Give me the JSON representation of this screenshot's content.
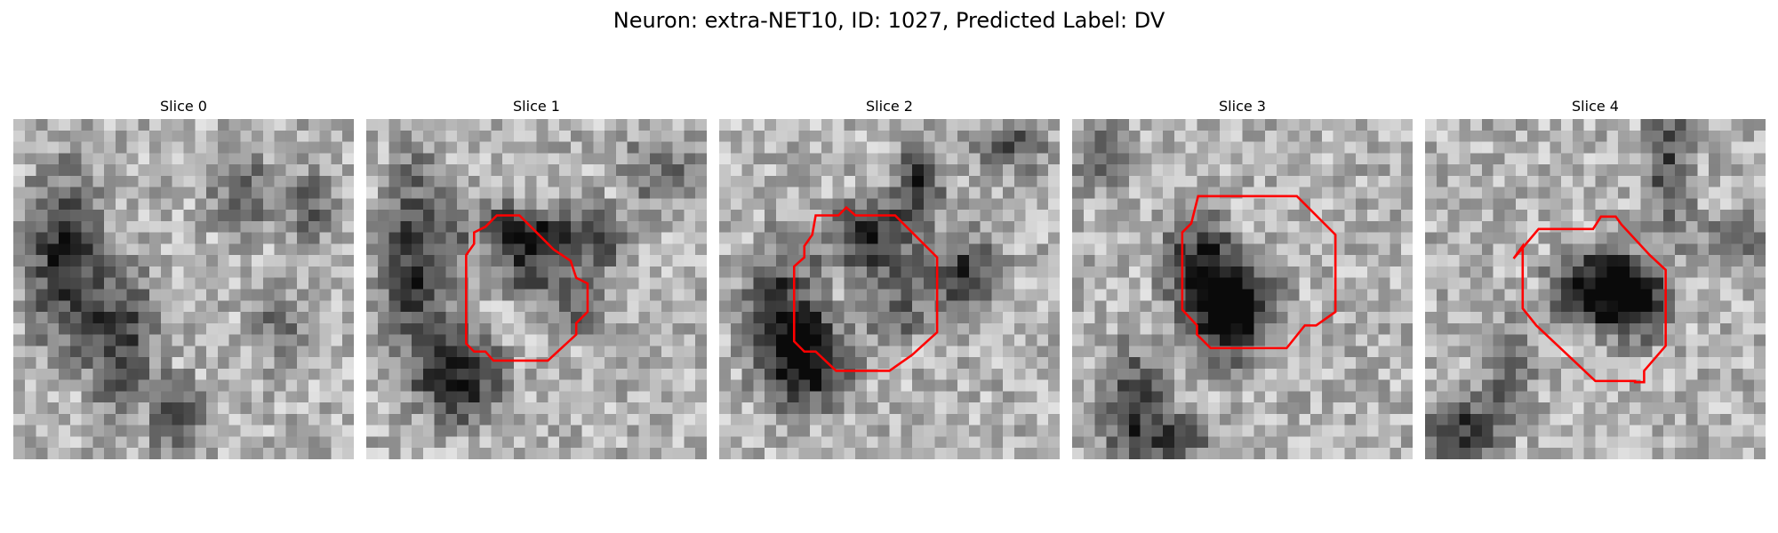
{
  "figure": {
    "title": "Neuron: extra-NET10, ID: 1027, Predicted Label: DV",
    "outline_color": "#ff0000"
  },
  "panels": [
    {
      "title": "Slice 0",
      "has_outline": false
    },
    {
      "title": "Slice 1",
      "has_outline": true
    },
    {
      "title": "Slice 2",
      "has_outline": true
    },
    {
      "title": "Slice 3",
      "has_outline": true
    },
    {
      "title": "Slice 4",
      "has_outline": true
    }
  ]
}
